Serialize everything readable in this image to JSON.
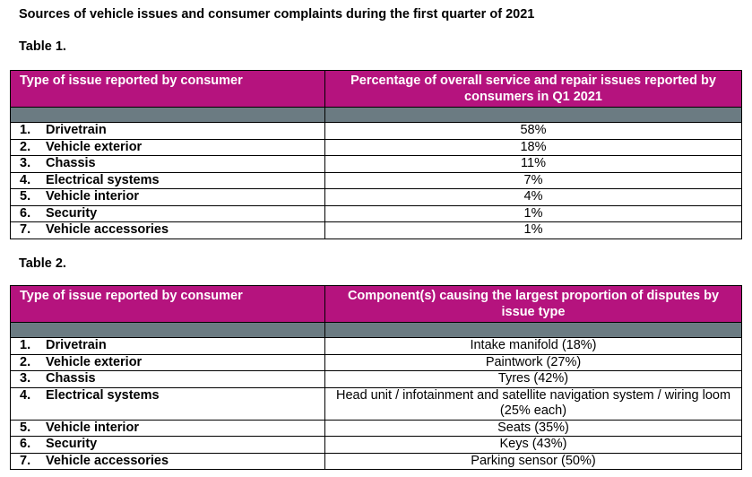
{
  "title": "Sources of vehicle issues and consumer complaints during the first quarter of 2021",
  "table1": {
    "label": "Table 1.",
    "header_col1": "Type of issue reported by consumer",
    "header_col2": "Percentage of overall service and repair issues reported by consumers in Q1 2021",
    "rows": [
      {
        "num": "1.",
        "type": "Drivetrain",
        "value": "58%"
      },
      {
        "num": "2.",
        "type": "Vehicle exterior",
        "value": "18%"
      },
      {
        "num": "3.",
        "type": "Chassis",
        "value": "11%"
      },
      {
        "num": "4.",
        "type": "Electrical systems",
        "value": "7%"
      },
      {
        "num": "5.",
        "type": "Vehicle interior",
        "value": "4%"
      },
      {
        "num": "6.",
        "type": "Security",
        "value": "1%"
      },
      {
        "num": "7.",
        "type": "Vehicle accessories",
        "value": "1%"
      }
    ]
  },
  "table2": {
    "label": "Table 2.",
    "header_col1": "Type of issue reported by consumer",
    "header_col2": "Component(s) causing the largest proportion of disputes by issue type",
    "rows": [
      {
        "num": "1.",
        "type": "Drivetrain",
        "value": "Intake manifold (18%)"
      },
      {
        "num": "2.",
        "type": "Vehicle exterior",
        "value": "Paintwork (27%)"
      },
      {
        "num": "3.",
        "type": "Chassis",
        "value": "Tyres (42%)"
      },
      {
        "num": "4.",
        "type": "Electrical systems",
        "value": "Head unit / infotainment and satellite navigation system / wiring loom (25% each)"
      },
      {
        "num": "5.",
        "type": "Vehicle interior",
        "value": "Seats (35%)"
      },
      {
        "num": "6.",
        "type": "Security",
        "value": "Keys (43%)"
      },
      {
        "num": "7.",
        "type": "Vehicle accessories",
        "value": "Parking sensor (50%)"
      }
    ]
  },
  "colors": {
    "header_bg": "#b5137e",
    "header_text": "#ffffff",
    "spacer_row": "#6b7b82"
  }
}
